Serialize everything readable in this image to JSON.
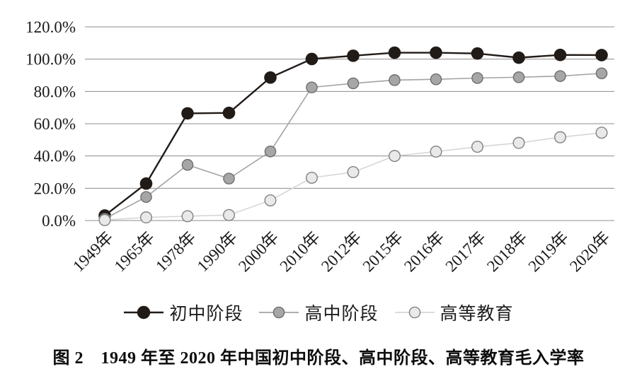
{
  "figure": {
    "caption": "图 2　1949 年至 2020 年中国初中阶段、高中阶段、高等教育毛入学率"
  },
  "chart_data": {
    "type": "line",
    "title": "",
    "xlabel": "",
    "ylabel": "",
    "categories": [
      "1949年",
      "1965年",
      "1978年",
      "1990年",
      "2000年",
      "2010年",
      "2012年",
      "2015年",
      "2016年",
      "2017年",
      "2018年",
      "2019年",
      "2020年"
    ],
    "series": [
      {
        "name": "初中阶段",
        "line_color": "#211b18",
        "marker_fill": "#211b18",
        "marker_stroke": "#211b18",
        "values": [
          3.1,
          22.9,
          66.4,
          66.7,
          88.6,
          100.1,
          102.1,
          104.0,
          104.0,
          103.5,
          100.9,
          102.6,
          102.5
        ]
      },
      {
        "name": "高中阶段",
        "line_color": "#a3a3a3",
        "marker_fill": "#a6a6a6",
        "marker_stroke": "#6e6e6e",
        "values": [
          1.1,
          14.6,
          34.5,
          26.0,
          42.8,
          82.5,
          85.0,
          87.0,
          87.5,
          88.3,
          88.8,
          89.5,
          91.2
        ]
      },
      {
        "name": "高等教育",
        "line_color": "#d6d6d6",
        "marker_fill": "#e9e9e9",
        "marker_stroke": "#828282",
        "values": [
          0.26,
          1.95,
          2.7,
          3.4,
          12.5,
          26.5,
          30.0,
          40.0,
          42.7,
          45.7,
          48.1,
          51.6,
          54.4
        ]
      }
    ],
    "ylim": [
      0,
      120
    ],
    "ytick_labels": [
      "120.0%",
      "100.0%",
      "80.0%",
      "60.0%",
      "40.0%",
      "20.0%",
      "0.0%"
    ],
    "grid": true,
    "grid_color": "#8c8c8c",
    "legend_position": "bottom"
  }
}
